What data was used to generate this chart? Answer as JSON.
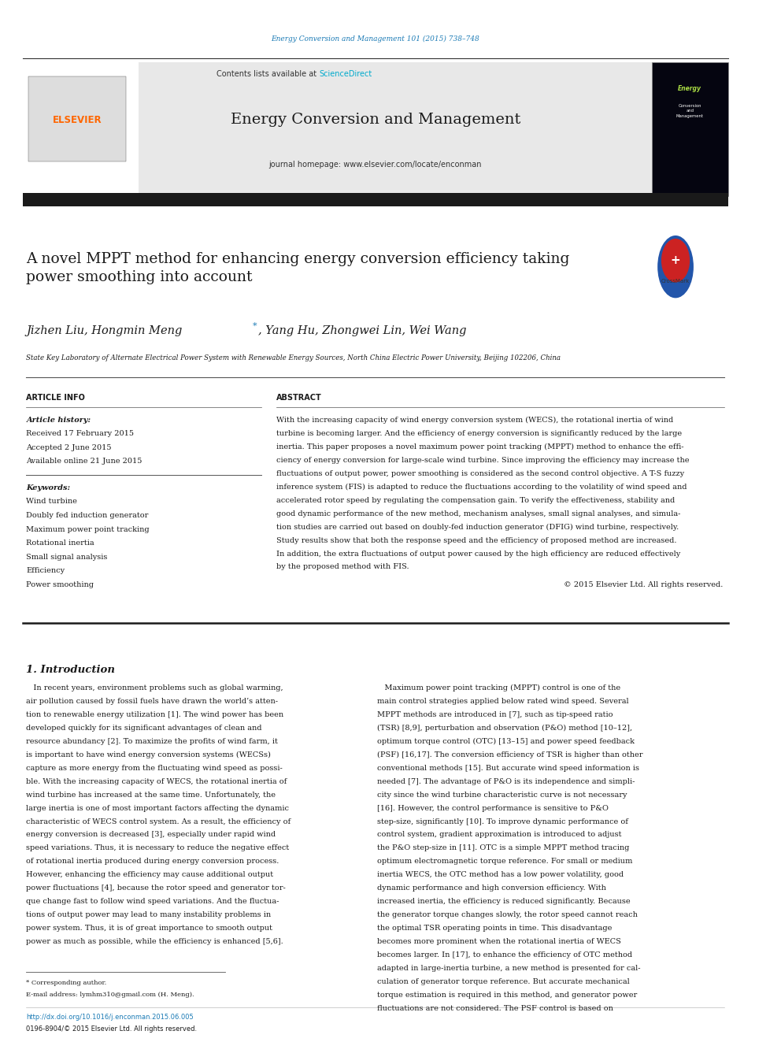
{
  "page_width": 9.92,
  "page_height": 13.23,
  "bg_color": "#ffffff",
  "journal_ref_text": "Energy Conversion and Management 101 (2015) 738–748",
  "journal_ref_color": "#1a7ab5",
  "header_bg": "#e8e8e8",
  "header_contents_text": "Contents lists available at ",
  "header_sciencedirect_text": "ScienceDirect",
  "header_sciencedirect_color": "#00aacc",
  "journal_title": "Energy Conversion and Management",
  "journal_homepage": "journal homepage: www.elsevier.com/locate/enconman",
  "elsevier_color": "#ff6600",
  "black_bar_color": "#1a1a1a",
  "paper_title": "A novel MPPT method for enhancing energy conversion efficiency taking\npower smoothing into account",
  "authors_part1": "Jizhen Liu, Hongmin Meng",
  "authors_part2": ", Yang Hu, Zhongwei Lin, Wei Wang",
  "affiliation": "State Key Laboratory of Alternate Electrical Power System with Renewable Energy Sources, North China Electric Power University, Beijing 102206, China",
  "article_info_label": "ARTICLE INFO",
  "abstract_label": "ABSTRACT",
  "article_history_label": "Article history:",
  "received_text": "Received 17 February 2015",
  "accepted_text": "Accepted 2 June 2015",
  "available_text": "Available online 21 June 2015",
  "keywords_label": "Keywords:",
  "keywords": [
    "Wind turbine",
    "Doubly fed induction generator",
    "Maximum power point tracking",
    "Rotational inertia",
    "Small signal analysis",
    "Efficiency",
    "Power smoothing"
  ],
  "abstract_lines": [
    "With the increasing capacity of wind energy conversion system (WECS), the rotational inertia of wind",
    "turbine is becoming larger. And the efficiency of energy conversion is significantly reduced by the large",
    "inertia. This paper proposes a novel maximum power point tracking (MPPT) method to enhance the effi-",
    "ciency of energy conversion for large-scale wind turbine. Since improving the efficiency may increase the",
    "fluctuations of output power, power smoothing is considered as the second control objective. A T-S fuzzy",
    "inference system (FIS) is adapted to reduce the fluctuations according to the volatility of wind speed and",
    "accelerated rotor speed by regulating the compensation gain. To verify the effectiveness, stability and",
    "good dynamic performance of the new method, mechanism analyses, small signal analyses, and simula-",
    "tion studies are carried out based on doubly-fed induction generator (DFIG) wind turbine, respectively.",
    "Study results show that both the response speed and the efficiency of proposed method are increased.",
    "In addition, the extra fluctuations of output power caused by the high efficiency are reduced effectively",
    "by the proposed method with FIS."
  ],
  "copyright_text": "© 2015 Elsevier Ltd. All rights reserved.",
  "intro_heading": "1. Introduction",
  "col1_intro_lines": [
    "   In recent years, environment problems such as global warming,",
    "air pollution caused by fossil fuels have drawn the world’s atten-",
    "tion to renewable energy utilization [1]. The wind power has been",
    "developed quickly for its significant advantages of clean and",
    "resource abundancy [2]. To maximize the profits of wind farm, it",
    "is important to have wind energy conversion systems (WECSs)",
    "capture as more energy from the fluctuating wind speed as possi-",
    "ble. With the increasing capacity of WECS, the rotational inertia of",
    "wind turbine has increased at the same time. Unfortunately, the",
    "large inertia is one of most important factors affecting the dynamic",
    "characteristic of WECS control system. As a result, the efficiency of",
    "energy conversion is decreased [3], especially under rapid wind",
    "speed variations. Thus, it is necessary to reduce the negative effect",
    "of rotational inertia produced during energy conversion process.",
    "However, enhancing the efficiency may cause additional output",
    "power fluctuations [4], because the rotor speed and generator tor-",
    "que change fast to follow wind speed variations. And the fluctua-",
    "tions of output power may lead to many instability problems in",
    "power system. Thus, it is of great importance to smooth output",
    "power as much as possible, while the efficiency is enhanced [5,6]."
  ],
  "col2_intro_lines": [
    "   Maximum power point tracking (MPPT) control is one of the",
    "main control strategies applied below rated wind speed. Several",
    "MPPT methods are introduced in [7], such as tip-speed ratio",
    "(TSR) [8,9], perturbation and observation (P&O) method [10–12],",
    "optimum torque control (OTC) [13–15] and power speed feedback",
    "(PSF) [16,17]. The conversion efficiency of TSR is higher than other",
    "conventional methods [15]. But accurate wind speed information is",
    "needed [7]. The advantage of P&O is its independence and simpli-",
    "city since the wind turbine characteristic curve is not necessary",
    "[16]. However, the control performance is sensitive to P&O",
    "step-size, significantly [10]. To improve dynamic performance of",
    "control system, gradient approximation is introduced to adjust",
    "the P&O step-size in [11]. OTC is a simple MPPT method tracing",
    "optimum electromagnetic torque reference. For small or medium",
    "inertia WECS, the OTC method has a low power volatility, good",
    "dynamic performance and high conversion efficiency. With",
    "increased inertia, the efficiency is reduced significantly. Because",
    "the generator torque changes slowly, the rotor speed cannot reach",
    "the optimal TSR operating points in time. This disadvantage",
    "becomes more prominent when the rotational inertia of WECS",
    "becomes larger. In [17], to enhance the efficiency of OTC method",
    "adapted in large-inertia turbine, a new method is presented for cal-",
    "culation of generator torque reference. But accurate mechanical",
    "torque estimation is required in this method, and generator power",
    "fluctuations are not considered. The PSF control is based on"
  ],
  "footer_corresponding": "* Corresponding author.",
  "footer_email": "E-mail address: lymhm310@gmail.com (H. Meng).",
  "footer_doi": "http://dx.doi.org/10.1016/j.enconman.2015.06.005",
  "footer_issn": "0196-8904/© 2015 Elsevier Ltd. All rights reserved.",
  "link_color": "#1a7ab5",
  "text_color": "#000000"
}
